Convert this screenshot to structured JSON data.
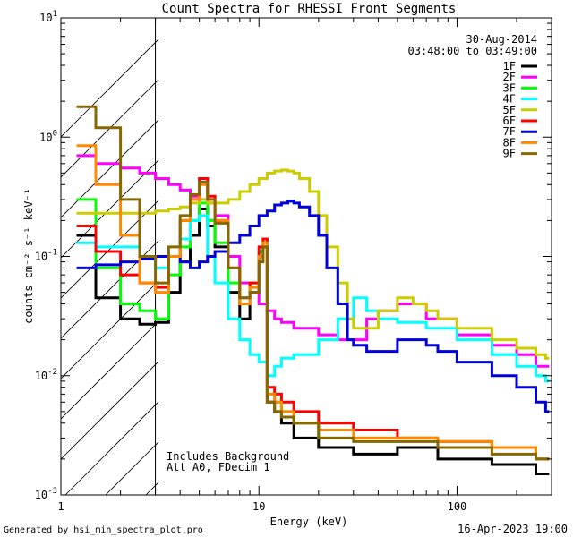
{
  "chart_data": {
    "type": "line",
    "title": "Count Spectra for RHESSI Front Segments",
    "xlabel": "Energy (keV)",
    "ylabel": "counts cm⁻² s⁻¹ keV⁻¹",
    "xscale": "log",
    "yscale": "log",
    "xlim": [
      1,
      300
    ],
    "ylim": [
      0.001,
      10
    ],
    "x_tick_labels": [
      "1",
      "10",
      "100"
    ],
    "y_tick_labels": [
      {
        "base": "10",
        "exp": "-3"
      },
      {
        "base": "10",
        "exp": "-2"
      },
      {
        "base": "10",
        "exp": "-1"
      },
      {
        "base": "10",
        "exp": "0"
      },
      {
        "base": "10",
        "exp": "1"
      }
    ],
    "shaded_region_kev": [
      1,
      3
    ],
    "annotations": {
      "date": "30-Aug-2014",
      "time_range": "03:48:00 to 03:49:00",
      "note_line1": "Includes Background",
      "note_line2": "Att A0, FDecim 1"
    },
    "footer_left": "Generated by hsi_min_spectra_plot.pro",
    "footer_right": "16-Apr-2023 19:00",
    "series": [
      {
        "name": "1F",
        "color": "#000000",
        "x": [
          1.2,
          1.5,
          2.0,
          2.5,
          3.0,
          3.5,
          4.0,
          4.5,
          5.0,
          5.5,
          6.0,
          7.0,
          8.0,
          9.0,
          10.0,
          10.5,
          11.0,
          12.0,
          13.0,
          15.0,
          20.0,
          30.0,
          50.0,
          80.0,
          150.0,
          250.0,
          280.0
        ],
        "y": [
          0.15,
          0.045,
          0.03,
          0.027,
          0.028,
          0.05,
          0.09,
          0.15,
          0.25,
          0.18,
          0.12,
          0.05,
          0.03,
          0.05,
          0.1,
          0.12,
          0.006,
          0.005,
          0.004,
          0.003,
          0.0025,
          0.0022,
          0.0025,
          0.002,
          0.0018,
          0.0015,
          0.0015
        ]
      },
      {
        "name": "2F",
        "color": "#ff00ff",
        "x": [
          1.2,
          1.5,
          2.0,
          2.5,
          3.0,
          3.5,
          4.0,
          4.5,
          5.0,
          5.5,
          6.0,
          7.0,
          8.0,
          9.0,
          10.0,
          11.0,
          12.0,
          13.0,
          15.0,
          20.0,
          25.0,
          30.0,
          35.0,
          40.0,
          50.0,
          70.0,
          100.0,
          150.0,
          200.0,
          250.0,
          280.0
        ],
        "y": [
          0.7,
          0.6,
          0.55,
          0.5,
          0.45,
          0.4,
          0.36,
          0.32,
          0.3,
          0.28,
          0.22,
          0.1,
          0.06,
          0.05,
          0.04,
          0.035,
          0.03,
          0.028,
          0.025,
          0.022,
          0.02,
          0.02,
          0.03,
          0.035,
          0.04,
          0.03,
          0.022,
          0.018,
          0.015,
          0.012,
          0.012
        ]
      },
      {
        "name": "3F",
        "color": "#00ff00",
        "x": [
          1.2,
          1.5,
          2.0,
          2.5,
          3.0,
          3.5,
          4.0,
          4.5,
          5.0,
          5.5,
          6.0,
          7.0,
          8.0,
          9.0,
          10.0,
          10.5,
          11.0,
          12.0,
          13.0,
          15.0,
          20.0,
          30.0,
          50.0,
          80.0,
          150.0,
          250.0,
          280.0
        ],
        "y": [
          0.3,
          0.08,
          0.04,
          0.035,
          0.03,
          0.07,
          0.12,
          0.2,
          0.28,
          0.2,
          0.13,
          0.06,
          0.04,
          0.06,
          0.11,
          0.14,
          0.007,
          0.006,
          0.005,
          0.004,
          0.003,
          0.003,
          0.003,
          0.0028,
          0.0025,
          0.002,
          0.002
        ]
      },
      {
        "name": "4F",
        "color": "#00ffff",
        "x": [
          1.2,
          1.5,
          2.0,
          2.5,
          3.0,
          3.5,
          4.0,
          4.5,
          5.0,
          5.5,
          6.0,
          7.0,
          8.0,
          9.0,
          10.0,
          11.0,
          12.0,
          13.0,
          15.0,
          20.0,
          25.0,
          30.0,
          35.0,
          40.0,
          50.0,
          70.0,
          100.0,
          150.0,
          200.0,
          250.0,
          280.0
        ],
        "y": [
          0.13,
          0.12,
          0.12,
          0.1,
          0.08,
          0.1,
          0.14,
          0.2,
          0.22,
          0.1,
          0.06,
          0.03,
          0.02,
          0.015,
          0.013,
          0.01,
          0.012,
          0.014,
          0.015,
          0.02,
          0.03,
          0.045,
          0.035,
          0.03,
          0.028,
          0.025,
          0.02,
          0.015,
          0.012,
          0.01,
          0.009
        ]
      },
      {
        "name": "5F",
        "color": "#cccc00",
        "x": [
          1.2,
          1.5,
          2.0,
          2.5,
          3.0,
          3.5,
          4.0,
          4.5,
          5.0,
          5.5,
          6.0,
          7.0,
          8.0,
          9.0,
          10.0,
          11.0,
          12.0,
          13.0,
          14.0,
          15.0,
          16.0,
          18.0,
          20.0,
          22.0,
          25.0,
          28.0,
          30.0,
          35.0,
          40.0,
          50.0,
          60.0,
          70.0,
          80.0,
          100.0,
          150.0,
          200.0,
          250.0,
          280.0
        ],
        "y": [
          0.23,
          0.23,
          0.23,
          0.23,
          0.24,
          0.25,
          0.26,
          0.28,
          0.3,
          0.28,
          0.28,
          0.3,
          0.35,
          0.4,
          0.45,
          0.5,
          0.52,
          0.53,
          0.52,
          0.5,
          0.45,
          0.35,
          0.22,
          0.12,
          0.06,
          0.03,
          0.025,
          0.025,
          0.035,
          0.045,
          0.04,
          0.035,
          0.03,
          0.025,
          0.02,
          0.017,
          0.015,
          0.014
        ]
      },
      {
        "name": "6F",
        "color": "#ff0000",
        "x": [
          1.2,
          1.5,
          2.0,
          2.5,
          3.0,
          3.5,
          4.0,
          4.5,
          5.0,
          5.5,
          6.0,
          7.0,
          8.0,
          9.0,
          10.0,
          10.5,
          11.0,
          12.0,
          13.0,
          15.0,
          20.0,
          30.0,
          50.0,
          80.0,
          150.0,
          250.0,
          280.0
        ],
        "y": [
          0.18,
          0.11,
          0.07,
          0.06,
          0.055,
          0.1,
          0.2,
          0.3,
          0.45,
          0.32,
          0.2,
          0.08,
          0.045,
          0.06,
          0.12,
          0.14,
          0.008,
          0.007,
          0.006,
          0.005,
          0.004,
          0.0035,
          0.003,
          0.0028,
          0.0025,
          0.002,
          0.002
        ]
      },
      {
        "name": "7F",
        "color": "#0000dd",
        "x": [
          1.2,
          1.5,
          2.0,
          2.5,
          3.0,
          3.5,
          4.0,
          4.5,
          5.0,
          5.5,
          6.0,
          7.0,
          8.0,
          9.0,
          10.0,
          11.0,
          12.0,
          13.0,
          14.0,
          15.0,
          16.0,
          18.0,
          20.0,
          22.0,
          25.0,
          28.0,
          30.0,
          35.0,
          40.0,
          50.0,
          60.0,
          70.0,
          80.0,
          100.0,
          150.0,
          200.0,
          250.0,
          280.0
        ],
        "y": [
          0.08,
          0.085,
          0.09,
          0.095,
          0.1,
          0.1,
          0.09,
          0.08,
          0.09,
          0.1,
          0.11,
          0.13,
          0.15,
          0.18,
          0.22,
          0.24,
          0.27,
          0.28,
          0.29,
          0.28,
          0.26,
          0.22,
          0.15,
          0.08,
          0.04,
          0.02,
          0.018,
          0.016,
          0.016,
          0.02,
          0.02,
          0.018,
          0.016,
          0.013,
          0.01,
          0.008,
          0.006,
          0.005
        ]
      },
      {
        "name": "8F",
        "color": "#ff8800",
        "x": [
          1.2,
          1.5,
          2.0,
          2.5,
          3.0,
          3.5,
          4.0,
          4.5,
          5.0,
          5.5,
          6.0,
          7.0,
          8.0,
          9.0,
          10.0,
          10.5,
          11.0,
          12.0,
          13.0,
          15.0,
          20.0,
          30.0,
          50.0,
          80.0,
          150.0,
          250.0,
          280.0
        ],
        "y": [
          0.85,
          0.4,
          0.15,
          0.06,
          0.05,
          0.1,
          0.2,
          0.3,
          0.4,
          0.3,
          0.2,
          0.08,
          0.04,
          0.055,
          0.1,
          0.13,
          0.007,
          0.006,
          0.005,
          0.004,
          0.0035,
          0.003,
          0.003,
          0.0028,
          0.0025,
          0.002,
          0.002
        ]
      },
      {
        "name": "9F",
        "color": "#886600",
        "x": [
          1.2,
          1.5,
          2.0,
          2.5,
          3.0,
          3.5,
          4.0,
          4.5,
          5.0,
          5.5,
          6.0,
          7.0,
          8.0,
          9.0,
          10.0,
          10.5,
          11.0,
          12.0,
          13.0,
          15.0,
          20.0,
          30.0,
          50.0,
          80.0,
          150.0,
          250.0,
          280.0
        ],
        "y": [
          1.8,
          1.2,
          0.3,
          0.1,
          0.06,
          0.12,
          0.22,
          0.33,
          0.42,
          0.3,
          0.19,
          0.08,
          0.045,
          0.05,
          0.09,
          0.12,
          0.006,
          0.005,
          0.0045,
          0.004,
          0.003,
          0.0028,
          0.0028,
          0.0025,
          0.0022,
          0.002,
          0.002
        ]
      }
    ]
  }
}
